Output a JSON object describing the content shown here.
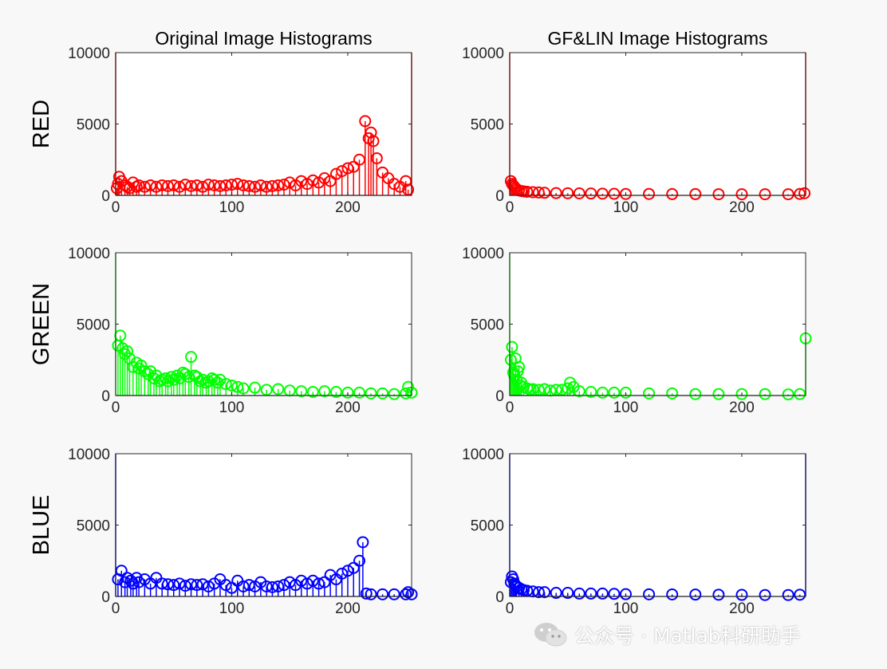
{
  "colors": {
    "red": "#ff0000",
    "green": "#00ff00",
    "blue": "#0000ff",
    "baseline": "#000000",
    "axes": "#262626",
    "background": "#f8f8f8"
  },
  "rows": [
    {
      "key": "red",
      "ylabel": "RED"
    },
    {
      "key": "green",
      "ylabel": "GREEN"
    },
    {
      "key": "blue",
      "ylabel": "BLUE"
    }
  ],
  "columns": [
    {
      "key": "original",
      "title": "Original Image Histograms"
    },
    {
      "key": "gflin",
      "title": "GF&LIN Image Histograms"
    }
  ],
  "watermark": {
    "icon": "wechat-icon",
    "text": "公众号 · Matlab科研助手"
  },
  "chart_data": [
    {
      "type": "stem",
      "panel": "red-original",
      "title": "Original Image Histograms",
      "ylabel": "RED",
      "color": "#ff0000",
      "xlim": [
        0,
        255
      ],
      "ylim": [
        0,
        10000
      ],
      "xticks": [
        0,
        100,
        200
      ],
      "yticks": [
        0,
        5000,
        10000
      ],
      "x": [
        0,
        1,
        2,
        3,
        5,
        8,
        10,
        12,
        15,
        18,
        20,
        25,
        30,
        35,
        40,
        45,
        50,
        55,
        60,
        65,
        70,
        75,
        80,
        85,
        90,
        95,
        100,
        105,
        110,
        115,
        120,
        125,
        130,
        135,
        140,
        145,
        150,
        155,
        160,
        165,
        170,
        175,
        180,
        185,
        190,
        195,
        200,
        205,
        210,
        215,
        218,
        220,
        222,
        225,
        230,
        235,
        240,
        245,
        250,
        252,
        255
      ],
      "y": [
        10000,
        500,
        800,
        1300,
        1000,
        700,
        600,
        500,
        900,
        600,
        700,
        600,
        700,
        600,
        700,
        650,
        700,
        600,
        750,
        650,
        700,
        600,
        750,
        700,
        650,
        700,
        750,
        800,
        700,
        650,
        600,
        700,
        600,
        650,
        700,
        750,
        900,
        700,
        1000,
        800,
        1050,
        900,
        1200,
        1000,
        1500,
        1700,
        1900,
        2000,
        2500,
        5200,
        4000,
        4400,
        3800,
        2600,
        1600,
        1200,
        800,
        600,
        1000,
        400,
        10000
      ]
    },
    {
      "type": "stem",
      "panel": "red-gflin",
      "title": "GF&LIN Image Histograms",
      "ylabel": "",
      "color": "#ff0000",
      "xlim": [
        0,
        255
      ],
      "ylim": [
        0,
        10000
      ],
      "xticks": [
        0,
        100,
        200
      ],
      "yticks": [
        0,
        5000,
        10000
      ],
      "x": [
        0,
        1,
        2,
        3,
        4,
        5,
        6,
        8,
        10,
        12,
        15,
        20,
        25,
        30,
        40,
        50,
        60,
        70,
        80,
        90,
        100,
        120,
        140,
        160,
        180,
        200,
        220,
        240,
        250,
        254,
        255
      ],
      "y": [
        10000,
        1000,
        800,
        700,
        600,
        500,
        400,
        350,
        300,
        280,
        250,
        220,
        200,
        180,
        160,
        150,
        140,
        130,
        120,
        110,
        100,
        100,
        90,
        90,
        80,
        80,
        80,
        80,
        100,
        150,
        10000
      ]
    },
    {
      "type": "stem",
      "panel": "green-original",
      "title": "",
      "ylabel": "GREEN",
      "color": "#00ff00",
      "xlim": [
        0,
        255
      ],
      "ylim": [
        0,
        10000
      ],
      "xticks": [
        0,
        100,
        200
      ],
      "yticks": [
        0,
        5000,
        10000
      ],
      "x": [
        0,
        2,
        4,
        6,
        8,
        10,
        12,
        15,
        18,
        20,
        22,
        25,
        28,
        30,
        33,
        35,
        38,
        40,
        43,
        45,
        48,
        50,
        53,
        55,
        58,
        60,
        63,
        65,
        68,
        70,
        73,
        75,
        78,
        80,
        83,
        85,
        88,
        90,
        95,
        100,
        105,
        110,
        120,
        130,
        140,
        150,
        160,
        170,
        180,
        190,
        200,
        210,
        220,
        230,
        240,
        250,
        252,
        255
      ],
      "y": [
        10000,
        3500,
        4200,
        3300,
        2900,
        3100,
        2600,
        2000,
        2300,
        1900,
        2100,
        1700,
        1500,
        1700,
        1200,
        1400,
        1000,
        1100,
        1200,
        1000,
        1300,
        1100,
        1400,
        1200,
        1600,
        1500,
        1300,
        2700,
        1400,
        1300,
        1000,
        1100,
        900,
        1000,
        1200,
        1100,
        900,
        1100,
        800,
        700,
        600,
        500,
        550,
        400,
        450,
        350,
        300,
        250,
        300,
        250,
        200,
        200,
        150,
        150,
        100,
        150,
        600,
        200
      ]
    },
    {
      "type": "stem",
      "panel": "green-gflin",
      "title": "",
      "ylabel": "",
      "color": "#00ff00",
      "xlim": [
        0,
        255
      ],
      "ylim": [
        0,
        10000
      ],
      "xticks": [
        0,
        100,
        200
      ],
      "yticks": [
        0,
        5000,
        10000
      ],
      "x": [
        0,
        1,
        2,
        3,
        4,
        5,
        6,
        7,
        8,
        9,
        10,
        12,
        15,
        18,
        20,
        25,
        30,
        35,
        40,
        45,
        50,
        52,
        55,
        60,
        70,
        80,
        90,
        100,
        120,
        140,
        160,
        180,
        200,
        220,
        240,
        250,
        255
      ],
      "y": [
        10000,
        2500,
        3400,
        1600,
        1400,
        2600,
        1100,
        1700,
        2000,
        700,
        900,
        600,
        500,
        400,
        450,
        400,
        450,
        350,
        400,
        400,
        500,
        900,
        600,
        300,
        250,
        200,
        200,
        200,
        150,
        150,
        100,
        100,
        100,
        100,
        80,
        100,
        4000
      ]
    },
    {
      "type": "stem",
      "panel": "blue-original",
      "title": "",
      "ylabel": "BLUE",
      "color": "#0000ff",
      "xlim": [
        0,
        255
      ],
      "ylim": [
        0,
        10000
      ],
      "xticks": [
        0,
        100,
        200
      ],
      "yticks": [
        0,
        5000,
        10000
      ],
      "x": [
        0,
        2,
        5,
        8,
        10,
        13,
        15,
        18,
        20,
        25,
        30,
        35,
        40,
        45,
        50,
        55,
        60,
        65,
        70,
        75,
        80,
        85,
        90,
        95,
        100,
        105,
        110,
        115,
        120,
        125,
        130,
        135,
        140,
        145,
        150,
        155,
        160,
        165,
        170,
        175,
        180,
        185,
        190,
        195,
        200,
        205,
        210,
        213,
        216,
        220,
        230,
        240,
        250,
        252,
        255
      ],
      "y": [
        10000,
        1200,
        1800,
        1000,
        1300,
        1100,
        900,
        1300,
        1000,
        1200,
        900,
        1300,
        900,
        850,
        800,
        900,
        750,
        850,
        800,
        850,
        700,
        900,
        1200,
        800,
        600,
        1100,
        700,
        800,
        700,
        1000,
        700,
        650,
        700,
        800,
        1000,
        800,
        1100,
        900,
        1100,
        900,
        1000,
        1500,
        1200,
        1600,
        1800,
        2000,
        2500,
        3800,
        200,
        150,
        150,
        150,
        150,
        300,
        150
      ]
    },
    {
      "type": "stem",
      "panel": "blue-gflin",
      "title": "",
      "ylabel": "",
      "color": "#0000ff",
      "xlim": [
        0,
        255
      ],
      "ylim": [
        0,
        10000
      ],
      "xticks": [
        0,
        100,
        200
      ],
      "yticks": [
        0,
        5000,
        10000
      ],
      "x": [
        0,
        1,
        2,
        3,
        4,
        5,
        6,
        8,
        10,
        12,
        15,
        20,
        25,
        30,
        40,
        50,
        60,
        70,
        80,
        90,
        100,
        120,
        140,
        160,
        180,
        200,
        220,
        240,
        250,
        255
      ],
      "y": [
        10000,
        1000,
        1400,
        1200,
        900,
        800,
        700,
        600,
        500,
        450,
        400,
        350,
        300,
        300,
        250,
        250,
        200,
        200,
        200,
        180,
        160,
        150,
        140,
        130,
        120,
        110,
        100,
        100,
        120,
        10000
      ]
    }
  ]
}
